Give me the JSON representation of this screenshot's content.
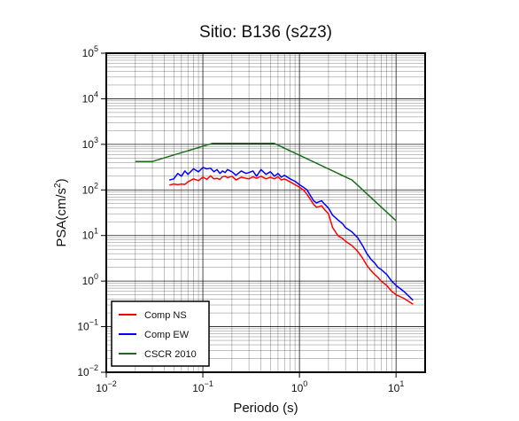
{
  "chart_data": {
    "type": "line",
    "title": "Sitio: B136 (s2z3)",
    "xlabel": "Periodo (s)",
    "ylabel_base": "PSA(cm/s",
    "ylabel_sup": "2",
    "ylabel_end": ")",
    "xscale": "log",
    "yscale": "log",
    "xlim": [
      0.01,
      20
    ],
    "ylim": [
      0.01,
      100000
    ],
    "grid": true,
    "legend_placement": "bottom-left",
    "x_ticks": [
      {
        "base": "10",
        "exp": "−2",
        "value": 0.01
      },
      {
        "base": "10",
        "exp": "−1",
        "value": 0.1
      },
      {
        "base": "10",
        "exp": "0",
        "value": 1
      },
      {
        "base": "10",
        "exp": "1",
        "value": 10
      }
    ],
    "y_ticks": [
      {
        "base": "10",
        "exp": "−2",
        "value": 0.01
      },
      {
        "base": "10",
        "exp": "−1",
        "value": 0.1
      },
      {
        "base": "10",
        "exp": "0",
        "value": 1
      },
      {
        "base": "10",
        "exp": "1",
        "value": 10
      },
      {
        "base": "10",
        "exp": "2",
        "value": 100
      },
      {
        "base": "10",
        "exp": "3",
        "value": 1000
      },
      {
        "base": "10",
        "exp": "4",
        "value": 10000
      },
      {
        "base": "10",
        "exp": "5",
        "value": 100000
      }
    ],
    "series": [
      {
        "name": "Comp NS",
        "color": "#ff0000",
        "x": [
          0.045,
          0.05,
          0.055,
          0.06,
          0.065,
          0.07,
          0.08,
          0.09,
          0.1,
          0.11,
          0.12,
          0.13,
          0.14,
          0.15,
          0.16,
          0.17,
          0.18,
          0.2,
          0.22,
          0.25,
          0.28,
          0.3,
          0.33,
          0.36,
          0.4,
          0.45,
          0.5,
          0.55,
          0.6,
          0.65,
          0.7,
          0.8,
          0.9,
          1.0,
          1.1,
          1.2,
          1.3,
          1.4,
          1.5,
          1.6,
          1.7,
          1.8,
          2.0,
          2.2,
          2.5,
          2.8,
          3.0,
          3.5,
          4.0,
          4.5,
          5.0,
          5.5,
          6.0,
          6.5,
          7.0,
          8.0,
          9.0,
          10.0,
          12.0,
          15.0
        ],
        "values": [
          128,
          135,
          130,
          135,
          132,
          150,
          175,
          160,
          190,
          170,
          205,
          175,
          180,
          170,
          195,
          200,
          185,
          200,
          165,
          190,
          180,
          175,
          195,
          180,
          200,
          175,
          190,
          175,
          195,
          165,
          175,
          150,
          130,
          115,
          100,
          80,
          62,
          48,
          42,
          43,
          45,
          38,
          30,
          15,
          10,
          8.5,
          7.5,
          6.0,
          4.5,
          3.2,
          2.2,
          1.7,
          1.4,
          1.2,
          1.0,
          0.8,
          0.6,
          0.5,
          0.42,
          0.31
        ]
      },
      {
        "name": "Comp EW",
        "color": "#0000ff",
        "x": [
          0.045,
          0.05,
          0.055,
          0.06,
          0.065,
          0.07,
          0.08,
          0.09,
          0.1,
          0.11,
          0.12,
          0.13,
          0.14,
          0.15,
          0.16,
          0.17,
          0.18,
          0.2,
          0.22,
          0.25,
          0.28,
          0.3,
          0.33,
          0.36,
          0.4,
          0.45,
          0.5,
          0.55,
          0.6,
          0.65,
          0.7,
          0.8,
          0.9,
          1.0,
          1.1,
          1.2,
          1.3,
          1.4,
          1.5,
          1.6,
          1.7,
          1.8,
          2.0,
          2.2,
          2.5,
          2.8,
          3.0,
          3.5,
          4.0,
          4.5,
          5.0,
          5.5,
          6.0,
          6.5,
          7.0,
          8.0,
          9.0,
          10.0,
          12.0,
          15.0
        ],
        "values": [
          165,
          175,
          230,
          200,
          260,
          220,
          290,
          250,
          310,
          290,
          300,
          250,
          280,
          230,
          260,
          240,
          280,
          250,
          210,
          260,
          230,
          240,
          260,
          200,
          280,
          220,
          250,
          200,
          230,
          190,
          210,
          175,
          155,
          130,
          115,
          100,
          75,
          58,
          52,
          55,
          58,
          50,
          40,
          28,
          22,
          18,
          15,
          12,
          9,
          6,
          4,
          3,
          2.5,
          2.0,
          1.8,
          1.4,
          1.0,
          0.8,
          0.6,
          0.38
        ]
      },
      {
        "name": "CSCR 2010",
        "color": "#1a6e1a",
        "x": [
          0.02,
          0.03,
          0.125,
          0.55,
          3.5,
          10.0
        ],
        "values": [
          420,
          420,
          1050,
          1050,
          165,
          21
        ]
      }
    ]
  }
}
